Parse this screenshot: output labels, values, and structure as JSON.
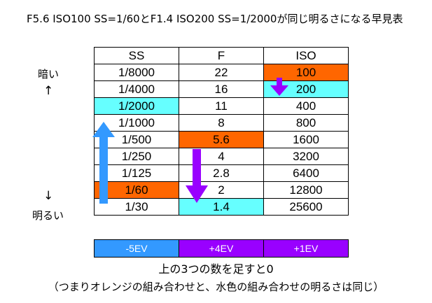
{
  "title": "F5.6 ISO100 SS=1/60とF1.4 ISO200 SS=1/2000が同じ明るさになる早見表",
  "side": {
    "dark_label": "暗い",
    "dark_arrow": "↑",
    "bright_arrow": "↓",
    "bright_label": "明るい"
  },
  "table": {
    "headers": [
      "SS",
      "F",
      "ISO"
    ],
    "rows": [
      [
        "1/8000",
        "22",
        "100"
      ],
      [
        "1/4000",
        "16",
        "200"
      ],
      [
        "1/2000",
        "11",
        "400"
      ],
      [
        "1/1000",
        "8",
        "800"
      ],
      [
        "1/500",
        "5.6",
        "1600"
      ],
      [
        "1/250",
        "4",
        "3200"
      ],
      [
        "1/125",
        "2.8",
        "6400"
      ],
      [
        "1/60",
        "2",
        "12800"
      ],
      [
        "1/30",
        "1.4",
        "25600"
      ]
    ],
    "highlights": [
      {
        "row": 0,
        "col": 2,
        "color": "#FF6600"
      },
      {
        "row": 1,
        "col": 2,
        "color": "#66FFFF"
      },
      {
        "row": 2,
        "col": 0,
        "color": "#66FFFF"
      },
      {
        "row": 4,
        "col": 1,
        "color": "#FF6600"
      },
      {
        "row": 7,
        "col": 0,
        "color": "#FF6600"
      },
      {
        "row": 8,
        "col": 1,
        "color": "#66FFFF"
      }
    ]
  },
  "ev_row": [
    {
      "label": "-5EV",
      "color": "#3399FF"
    },
    {
      "label": "+4EV",
      "color": "#9900FF"
    },
    {
      "label": "+1EV",
      "color": "#9900FF"
    }
  ],
  "arrow_colors": {
    "ss": "#3399FF",
    "f": "#9900FF",
    "iso": "#9900FF"
  },
  "bottom_line1": "上の3つの数を足すと0",
  "bottom_line2": "（つまりオレンジの組み合わせと、水色の組み合わせの明るさは同じ）"
}
